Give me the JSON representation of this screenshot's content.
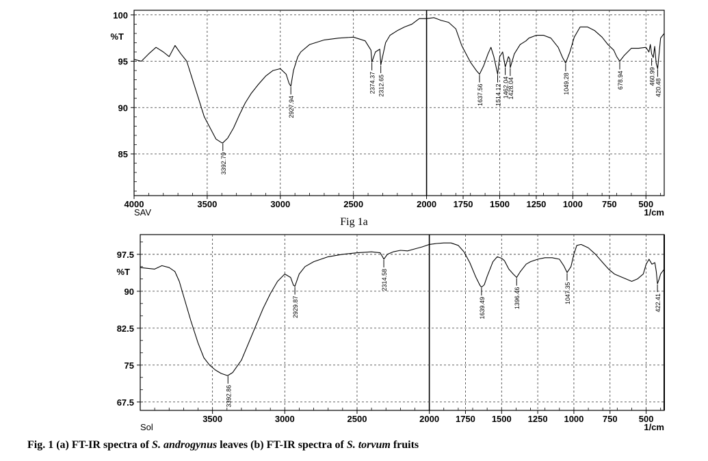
{
  "figure_label_a": "Fig 1a",
  "caption": {
    "prefix": "Fig. 1 (a) FT-IR spectra of ",
    "species1": "S. androgynus",
    "middle": " leaves (b) FT-IR spectra of ",
    "species2": "S. torvum",
    "suffix": " fruits"
  },
  "chart_data": [
    {
      "type": "line",
      "sample_label": "SAV",
      "ylabel": "%T",
      "xunit": "1/cm",
      "xlim": [
        4000,
        375
      ],
      "ylim": [
        80.5,
        100.5
      ],
      "xticks": [
        4000,
        3500,
        3000,
        2500,
        2000,
        1750,
        1500,
        1250,
        1000,
        750,
        500
      ],
      "yticks": [
        85,
        90,
        95,
        100
      ],
      "grid": true,
      "x": [
        4000,
        3950,
        3900,
        3850,
        3800,
        3760,
        3720,
        3680,
        3640,
        3600,
        3560,
        3520,
        3480,
        3440,
        3400,
        3393,
        3360,
        3320,
        3280,
        3240,
        3200,
        3150,
        3100,
        3050,
        3000,
        2960,
        2940,
        2928,
        2910,
        2880,
        2860,
        2800,
        2700,
        2600,
        2500,
        2420,
        2380,
        2374,
        2350,
        2320,
        2313,
        2280,
        2250,
        2200,
        2150,
        2100,
        2050,
        2000,
        1950,
        1900,
        1850,
        1800,
        1760,
        1720,
        1700,
        1660,
        1638,
        1610,
        1580,
        1560,
        1540,
        1514,
        1500,
        1480,
        1462,
        1440,
        1430,
        1428,
        1400,
        1360,
        1320,
        1300,
        1250,
        1200,
        1150,
        1100,
        1070,
        1049,
        1020,
        990,
        950,
        900,
        850,
        800,
        760,
        720,
        700,
        679,
        650,
        600,
        550,
        500,
        480,
        470,
        461,
        450,
        440,
        430,
        420,
        400,
        375
      ],
      "y": [
        95.2,
        95.0,
        95.8,
        96.5,
        96.0,
        95.5,
        96.7,
        95.8,
        95.0,
        93.0,
        91.0,
        89.0,
        87.8,
        86.6,
        86.2,
        86.2,
        86.7,
        87.8,
        89.2,
        90.5,
        91.5,
        92.5,
        93.4,
        94.0,
        94.2,
        93.6,
        92.6,
        92.3,
        94.0,
        95.5,
        96.0,
        96.8,
        97.3,
        97.5,
        97.6,
        97.2,
        96.2,
        94.9,
        96.0,
        96.3,
        94.6,
        97.0,
        97.8,
        98.3,
        98.7,
        99.0,
        99.6,
        99.6,
        99.7,
        99.4,
        99.2,
        98.5,
        96.7,
        95.5,
        94.9,
        94.0,
        93.6,
        94.5,
        95.8,
        96.5,
        95.5,
        93.6,
        95.5,
        96.0,
        94.4,
        95.5,
        95.2,
        94.3,
        95.8,
        96.8,
        97.2,
        97.5,
        97.8,
        97.8,
        97.5,
        96.5,
        95.4,
        94.8,
        96.0,
        97.6,
        98.7,
        98.7,
        98.3,
        97.6,
        96.8,
        96.2,
        95.5,
        95.0,
        95.6,
        96.4,
        96.4,
        96.5,
        96.0,
        96.8,
        95.8,
        95.4,
        96.6,
        94.8,
        94.2,
        97.5,
        98.0
      ],
      "peaks": [
        {
          "x": 3393,
          "y": 86.2,
          "label": "3392.79"
        },
        {
          "x": 2928,
          "y": 92.3,
          "label": "2927.94"
        },
        {
          "x": 2374,
          "y": 94.9,
          "label": "2374.37"
        },
        {
          "x": 2313,
          "y": 94.6,
          "label": "2312.65"
        },
        {
          "x": 1638,
          "y": 93.6,
          "label": "1637.56"
        },
        {
          "x": 1514,
          "y": 93.6,
          "label": "1514.12"
        },
        {
          "x": 1462,
          "y": 94.4,
          "label": "1462.04"
        },
        {
          "x": 1428,
          "y": 94.3,
          "label": "1428.04"
        },
        {
          "x": 1049,
          "y": 94.8,
          "label": "1049.28"
        },
        {
          "x": 679,
          "y": 95.0,
          "label": "678.94"
        },
        {
          "x": 461,
          "y": 95.4,
          "label": "460.99"
        },
        {
          "x": 420,
          "y": 94.2,
          "label": "420.48"
        }
      ]
    },
    {
      "type": "line",
      "sample_label": "Sol",
      "ylabel": "%T",
      "xunit": "1/cm",
      "xlim": [
        4000,
        375
      ],
      "ylim": [
        65.8,
        101.5
      ],
      "xticks": [
        3500,
        3000,
        2500,
        2000,
        1750,
        1500,
        1250,
        1000,
        750,
        500
      ],
      "yticks": [
        67.5,
        75,
        82.5,
        90,
        97.5
      ],
      "grid": true,
      "x": [
        4000,
        3900,
        3850,
        3800,
        3760,
        3730,
        3700,
        3650,
        3600,
        3560,
        3520,
        3480,
        3440,
        3400,
        3393,
        3360,
        3300,
        3250,
        3200,
        3150,
        3100,
        3050,
        3000,
        2960,
        2940,
        2930,
        2900,
        2860,
        2800,
        2700,
        2600,
        2500,
        2400,
        2340,
        2320,
        2315,
        2290,
        2250,
        2200,
        2150,
        2100,
        2050,
        2000,
        1950,
        1900,
        1850,
        1800,
        1760,
        1720,
        1680,
        1650,
        1639,
        1620,
        1600,
        1560,
        1530,
        1500,
        1480,
        1450,
        1420,
        1396,
        1370,
        1330,
        1300,
        1250,
        1200,
        1150,
        1100,
        1070,
        1047,
        1020,
        1000,
        980,
        950,
        900,
        850,
        800,
        760,
        720,
        680,
        640,
        600,
        560,
        520,
        500,
        480,
        460,
        440,
        430,
        422,
        410,
        400,
        375
      ],
      "y": [
        94.8,
        94.5,
        95.2,
        94.8,
        94.0,
        92.0,
        89.0,
        84.0,
        79.5,
        76.5,
        75.0,
        74.0,
        73.3,
        72.9,
        72.9,
        73.5,
        76.0,
        79.5,
        83.0,
        86.5,
        89.5,
        92.0,
        93.5,
        92.8,
        91.2,
        91.0,
        93.5,
        95.0,
        96.0,
        97.0,
        97.5,
        97.8,
        98.0,
        97.8,
        96.8,
        96.5,
        97.5,
        98.0,
        98.3,
        98.2,
        98.6,
        99.0,
        99.5,
        99.7,
        99.8,
        99.8,
        99.3,
        98.0,
        95.8,
        93.0,
        91.2,
        90.8,
        91.3,
        93.0,
        96.0,
        97.0,
        96.7,
        96.2,
        94.5,
        93.5,
        92.8,
        94.0,
        95.5,
        96.0,
        96.5,
        96.8,
        96.8,
        96.5,
        95.2,
        93.8,
        95.0,
        97.5,
        99.3,
        99.5,
        98.8,
        97.5,
        95.8,
        94.5,
        93.5,
        93.0,
        92.5,
        92.0,
        92.5,
        93.5,
        95.5,
        96.5,
        95.5,
        95.8,
        94.0,
        91.5,
        92.5,
        93.5,
        94.5
      ],
      "peaks": [
        {
          "x": 3393,
          "y": 72.9,
          "label": "3392.86"
        },
        {
          "x": 2930,
          "y": 91.0,
          "label": "2929.87"
        },
        {
          "x": 2315,
          "y": 96.5,
          "label": "2314.58"
        },
        {
          "x": 1639,
          "y": 90.8,
          "label": "1639.49"
        },
        {
          "x": 1396,
          "y": 92.8,
          "label": "1396.46"
        },
        {
          "x": 1047,
          "y": 93.8,
          "label": "1047.35"
        },
        {
          "x": 422,
          "y": 91.5,
          "label": "422.41"
        }
      ]
    }
  ]
}
